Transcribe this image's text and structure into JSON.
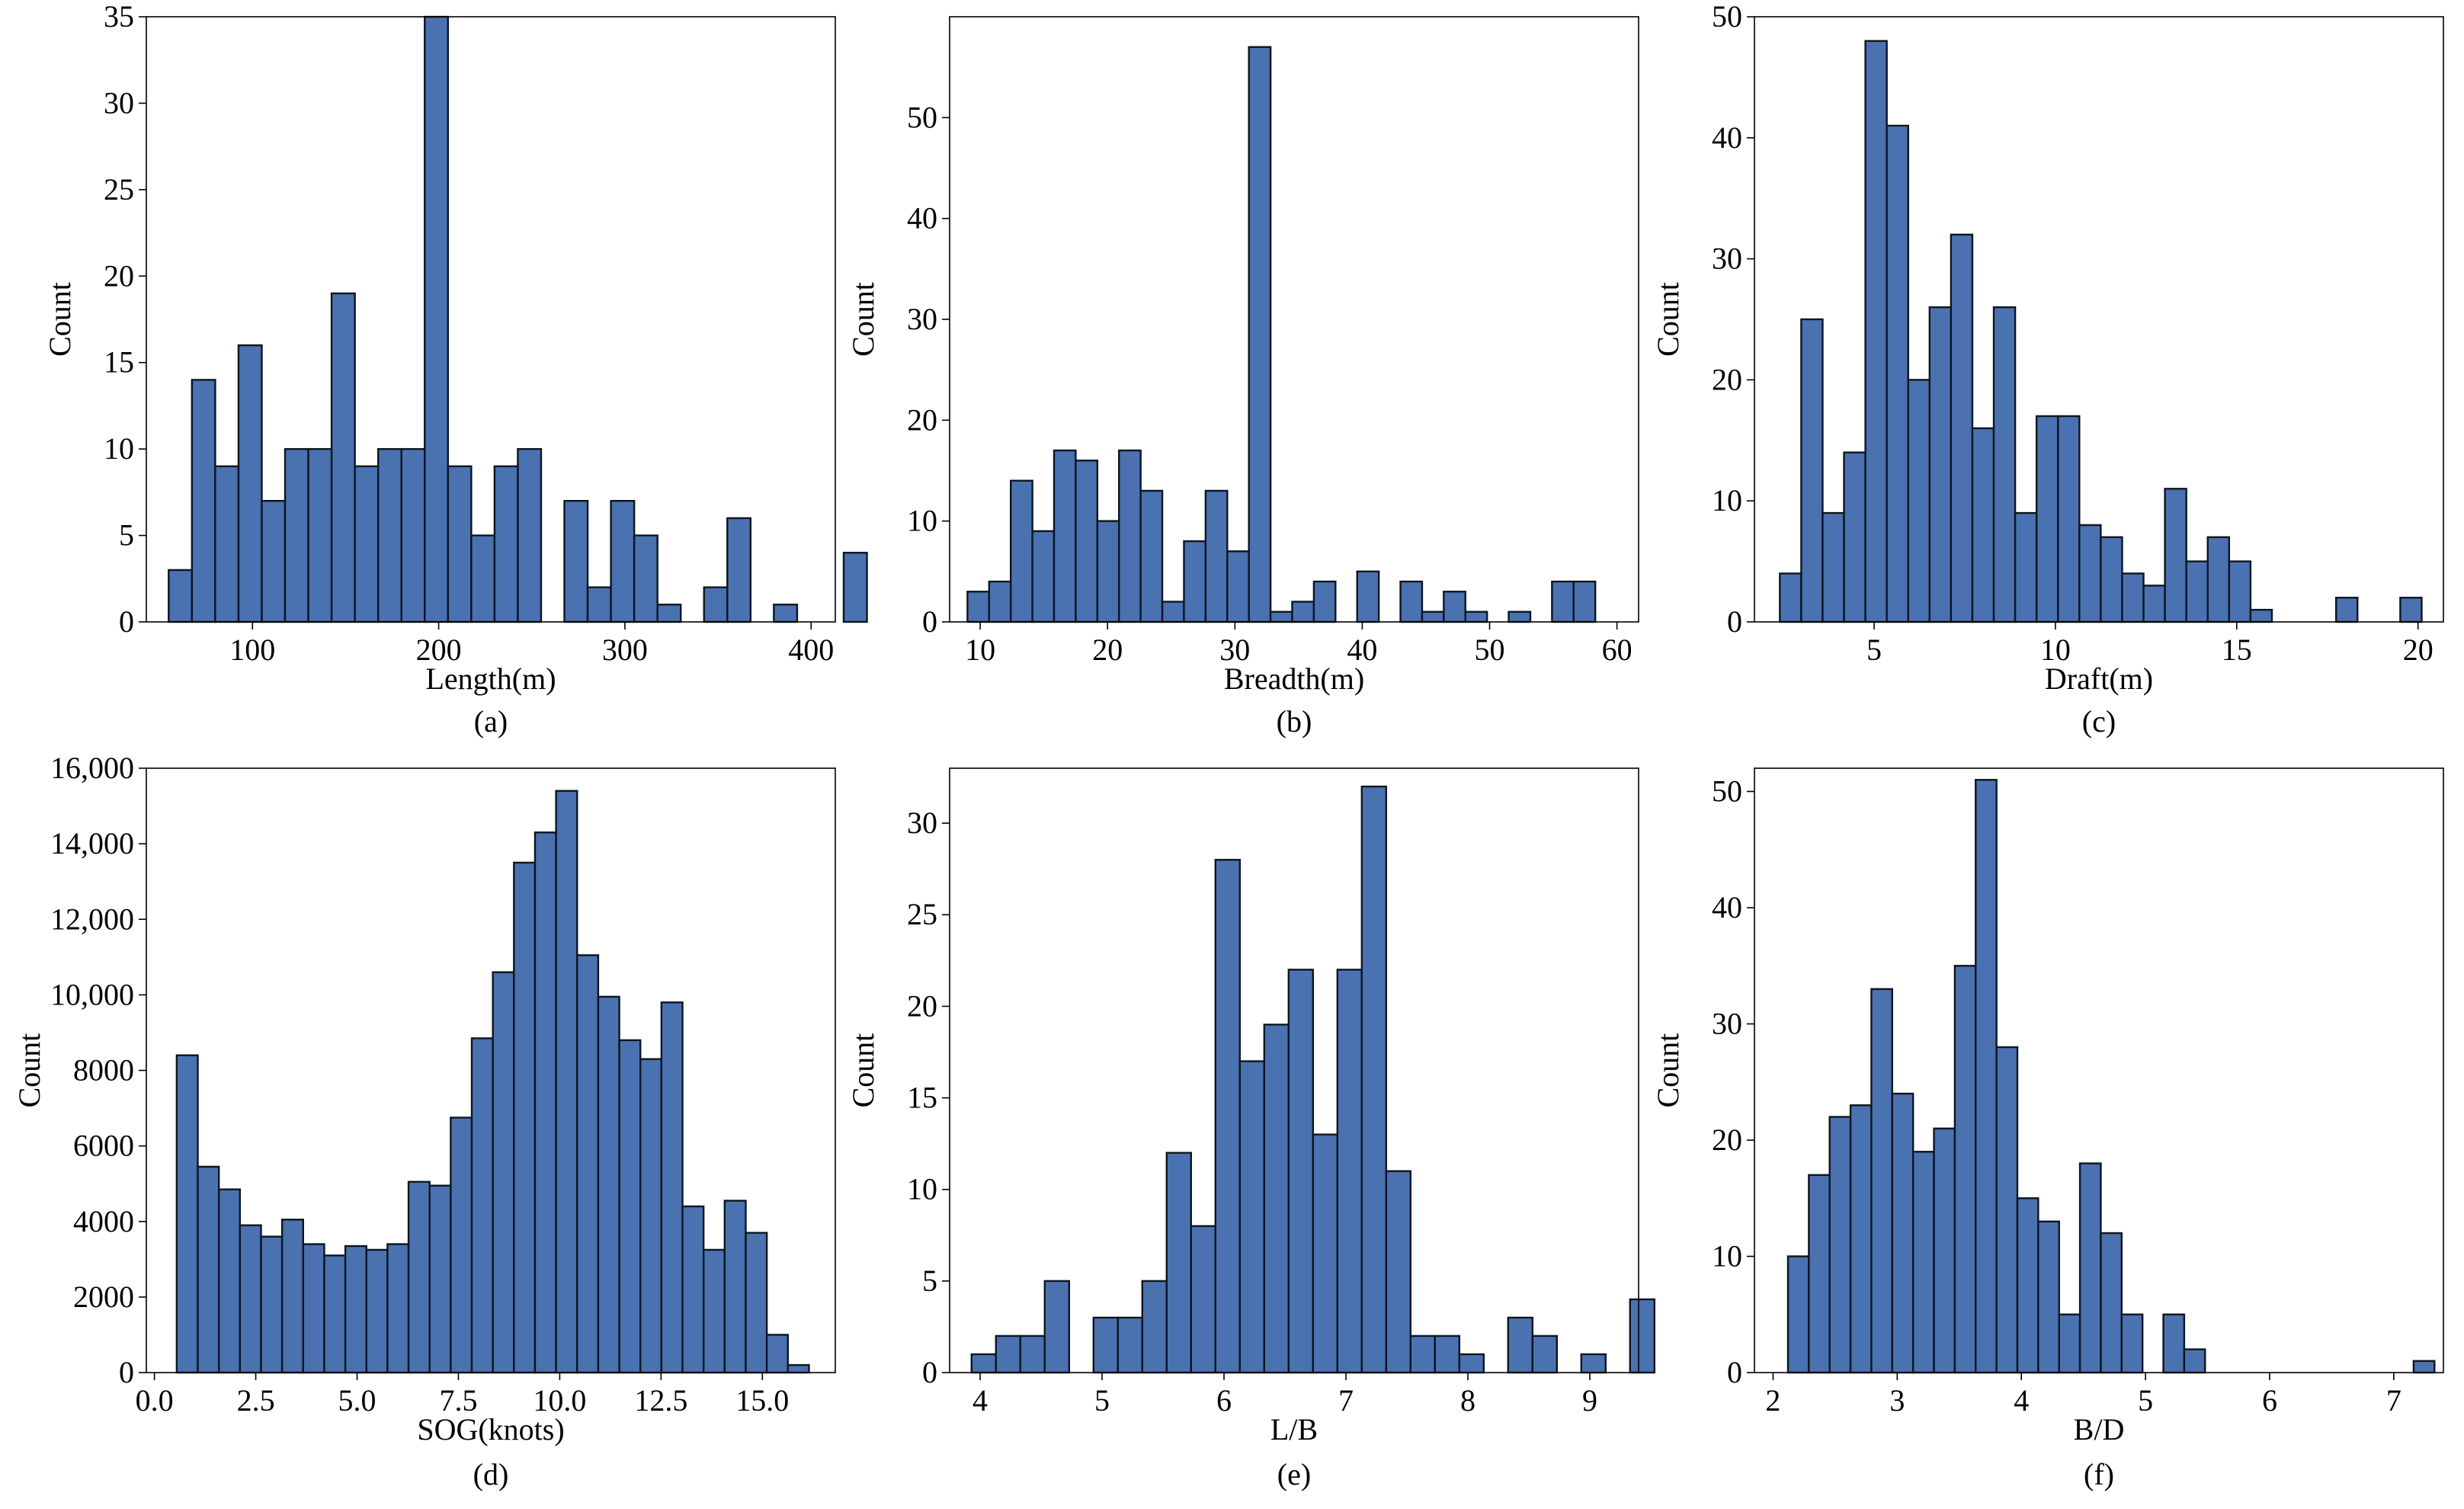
{
  "chart_data": [
    {
      "type": "bar",
      "panel_label": "(a)",
      "xlabel": "Length(m)",
      "ylabel": "Count",
      "xlim": [
        43,
        413
      ],
      "ylim": [
        0,
        35
      ],
      "xticks": [
        100,
        200,
        300,
        400
      ],
      "yticks": [
        0,
        5,
        10,
        15,
        20,
        25,
        30,
        35
      ],
      "bin_start": 55,
      "bin_width": 12.5,
      "values": [
        3,
        14,
        9,
        16,
        7,
        10,
        10,
        19,
        9,
        10,
        10,
        35,
        9,
        5,
        9,
        10,
        0,
        7,
        2,
        7,
        5,
        1,
        0,
        2,
        6,
        0,
        1,
        0,
        0,
        4
      ]
    },
    {
      "type": "bar",
      "panel_label": "(b)",
      "xlabel": "Breadth(m)",
      "ylabel": "Count",
      "xlim": [
        7.6,
        61.7
      ],
      "ylim": [
        0,
        60
      ],
      "xticks": [
        10,
        20,
        30,
        40,
        50,
        60
      ],
      "yticks": [
        0,
        10,
        20,
        30,
        40,
        50
      ],
      "bin_start": 9,
      "bin_width": 1.7,
      "values": [
        3,
        4,
        14,
        9,
        17,
        16,
        10,
        17,
        13,
        2,
        8,
        13,
        7,
        57,
        1,
        2,
        4,
        0,
        5,
        0,
        4,
        1,
        3,
        1,
        0,
        1,
        0,
        4,
        4
      ]
    },
    {
      "type": "bar",
      "panel_label": "(c)",
      "xlabel": "Draft(m)",
      "ylabel": "Count",
      "xlim": [
        1.7,
        20.7
      ],
      "ylim": [
        0,
        50
      ],
      "xticks": [
        5,
        10,
        15,
        20
      ],
      "yticks": [
        0,
        10,
        20,
        30,
        40,
        50
      ],
      "bin_start": 2.4,
      "bin_width": 0.59,
      "values": [
        4,
        25,
        9,
        14,
        48,
        41,
        20,
        26,
        32,
        16,
        26,
        9,
        17,
        17,
        8,
        7,
        4,
        3,
        11,
        5,
        7,
        5,
        1,
        0,
        0,
        0,
        2,
        0,
        0,
        2
      ]
    },
    {
      "type": "bar",
      "panel_label": "(d)",
      "xlabel": "SOG(knots)",
      "ylabel": "Count",
      "xlim": [
        -0.2,
        16.8
      ],
      "ylim": [
        0,
        16000
      ],
      "xticks": [
        "0.0",
        "2.5",
        "5.0",
        "7.5",
        "10.0",
        "12.5",
        "15.0"
      ],
      "xtick_values": [
        0,
        2.5,
        5,
        7.5,
        10,
        12.5,
        15
      ],
      "yticks": [
        "0",
        "2000",
        "4000",
        "6000",
        "8000",
        "10,000",
        "12,000",
        "14,000",
        "16,000"
      ],
      "ytick_values": [
        0,
        2000,
        4000,
        6000,
        8000,
        10000,
        12000,
        14000,
        16000
      ],
      "bin_start": 0.55,
      "bin_width": 0.52,
      "values": [
        8400,
        5450,
        4850,
        3900,
        3600,
        4050,
        3400,
        3100,
        3350,
        3250,
        3400,
        5050,
        4950,
        6750,
        8850,
        10600,
        13500,
        14300,
        15400,
        11050,
        9950,
        8800,
        8300,
        9800,
        4400,
        3250,
        4550,
        3700,
        1000,
        200
      ]
    },
    {
      "type": "bar",
      "panel_label": "(e)",
      "xlabel": "L/B",
      "ylabel": "Count",
      "xlim": [
        3.75,
        9.4
      ],
      "ylim": [
        0,
        33
      ],
      "xticks": [
        4,
        5,
        6,
        7,
        8,
        9
      ],
      "yticks": [
        0,
        5,
        10,
        15,
        20,
        25,
        30
      ],
      "bin_start": 3.93,
      "bin_width": 0.2,
      "values": [
        1,
        2,
        2,
        5,
        0,
        3,
        3,
        5,
        12,
        8,
        28,
        17,
        19,
        22,
        13,
        22,
        32,
        11,
        2,
        2,
        1,
        0,
        3,
        2,
        0,
        1,
        0,
        4
      ]
    },
    {
      "type": "bar",
      "panel_label": "(f)",
      "xlabel": "B/D",
      "ylabel": "Count",
      "xlim": [
        1.85,
        7.4
      ],
      "ylim": [
        0,
        52
      ],
      "xticks": [
        2,
        3,
        4,
        5,
        6,
        7
      ],
      "yticks": [
        0,
        10,
        20,
        30,
        40,
        50
      ],
      "bin_start": 2.12,
      "bin_width": 0.168,
      "values": [
        10,
        17,
        22,
        23,
        33,
        24,
        19,
        21,
        35,
        51,
        28,
        15,
        13,
        5,
        18,
        12,
        5,
        0,
        5,
        2,
        0,
        0,
        0,
        0,
        0,
        0,
        0,
        0,
        0,
        0,
        1
      ]
    }
  ],
  "colors": {
    "bar_fill": "#4a72b0",
    "bar_edge": "#0d1520",
    "axes": "#000000"
  }
}
